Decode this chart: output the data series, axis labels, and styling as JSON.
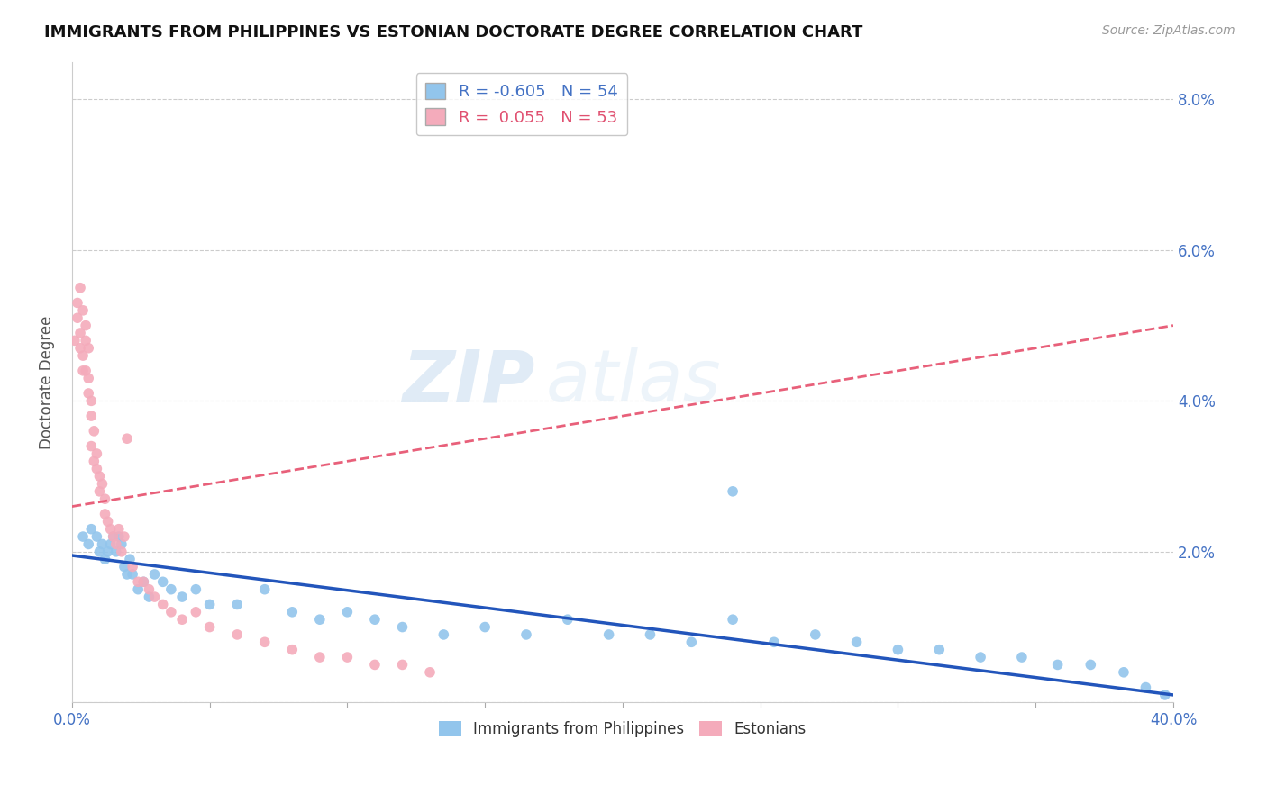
{
  "title": "IMMIGRANTS FROM PHILIPPINES VS ESTONIAN DOCTORATE DEGREE CORRELATION CHART",
  "source": "Source: ZipAtlas.com",
  "ylabel": "Doctorate Degree",
  "xlim": [
    0.0,
    0.4
  ],
  "ylim": [
    0.0,
    0.085
  ],
  "yticks": [
    0.0,
    0.02,
    0.04,
    0.06,
    0.08
  ],
  "xticks": [
    0.0,
    0.05,
    0.1,
    0.15,
    0.2,
    0.25,
    0.3,
    0.35,
    0.4
  ],
  "xtick_labels": [
    "0.0%",
    "",
    "",
    "",
    "",
    "",
    "",
    "",
    "40.0%"
  ],
  "right_ytick_labels": [
    "",
    "2.0%",
    "4.0%",
    "6.0%",
    "8.0%"
  ],
  "blue_R": -0.605,
  "blue_N": 54,
  "pink_R": 0.055,
  "pink_N": 53,
  "blue_color": "#92C5EC",
  "pink_color": "#F4ABBB",
  "blue_line_color": "#2255BB",
  "pink_line_color": "#E8607A",
  "watermark": "ZIPatlas",
  "blue_scatter_x": [
    0.004,
    0.006,
    0.007,
    0.009,
    0.01,
    0.011,
    0.012,
    0.013,
    0.014,
    0.015,
    0.016,
    0.017,
    0.018,
    0.019,
    0.02,
    0.021,
    0.022,
    0.024,
    0.026,
    0.028,
    0.03,
    0.033,
    0.036,
    0.04,
    0.045,
    0.05,
    0.06,
    0.07,
    0.08,
    0.09,
    0.1,
    0.11,
    0.12,
    0.135,
    0.15,
    0.165,
    0.18,
    0.195,
    0.21,
    0.225,
    0.24,
    0.255,
    0.27,
    0.24,
    0.285,
    0.3,
    0.315,
    0.33,
    0.345,
    0.358,
    0.37,
    0.382,
    0.39,
    0.397
  ],
  "blue_scatter_y": [
    0.022,
    0.021,
    0.023,
    0.022,
    0.02,
    0.021,
    0.019,
    0.02,
    0.021,
    0.022,
    0.02,
    0.022,
    0.021,
    0.018,
    0.017,
    0.019,
    0.017,
    0.015,
    0.016,
    0.014,
    0.017,
    0.016,
    0.015,
    0.014,
    0.015,
    0.013,
    0.013,
    0.015,
    0.012,
    0.011,
    0.012,
    0.011,
    0.01,
    0.009,
    0.01,
    0.009,
    0.011,
    0.009,
    0.009,
    0.008,
    0.028,
    0.008,
    0.009,
    0.011,
    0.008,
    0.007,
    0.007,
    0.006,
    0.006,
    0.005,
    0.005,
    0.004,
    0.002,
    0.001
  ],
  "pink_scatter_x": [
    0.001,
    0.002,
    0.002,
    0.003,
    0.003,
    0.003,
    0.004,
    0.004,
    0.004,
    0.005,
    0.005,
    0.005,
    0.006,
    0.006,
    0.006,
    0.007,
    0.007,
    0.007,
    0.008,
    0.008,
    0.009,
    0.009,
    0.01,
    0.01,
    0.011,
    0.012,
    0.012,
    0.013,
    0.014,
    0.015,
    0.016,
    0.017,
    0.018,
    0.019,
    0.02,
    0.022,
    0.024,
    0.026,
    0.028,
    0.03,
    0.033,
    0.036,
    0.04,
    0.045,
    0.05,
    0.06,
    0.07,
    0.08,
    0.09,
    0.1,
    0.11,
    0.12,
    0.13
  ],
  "pink_scatter_y": [
    0.048,
    0.053,
    0.051,
    0.055,
    0.049,
    0.047,
    0.052,
    0.046,
    0.044,
    0.05,
    0.044,
    0.048,
    0.043,
    0.047,
    0.041,
    0.038,
    0.04,
    0.034,
    0.036,
    0.032,
    0.031,
    0.033,
    0.03,
    0.028,
    0.029,
    0.027,
    0.025,
    0.024,
    0.023,
    0.022,
    0.021,
    0.023,
    0.02,
    0.022,
    0.035,
    0.018,
    0.016,
    0.016,
    0.015,
    0.014,
    0.013,
    0.012,
    0.011,
    0.012,
    0.01,
    0.009,
    0.008,
    0.007,
    0.006,
    0.006,
    0.005,
    0.005,
    0.004
  ],
  "blue_trendline_x": [
    0.0,
    0.4
  ],
  "blue_trendline_y": [
    0.0195,
    0.001
  ],
  "pink_trendline_x": [
    0.0,
    0.4
  ],
  "pink_trendline_y": [
    0.026,
    0.05
  ]
}
